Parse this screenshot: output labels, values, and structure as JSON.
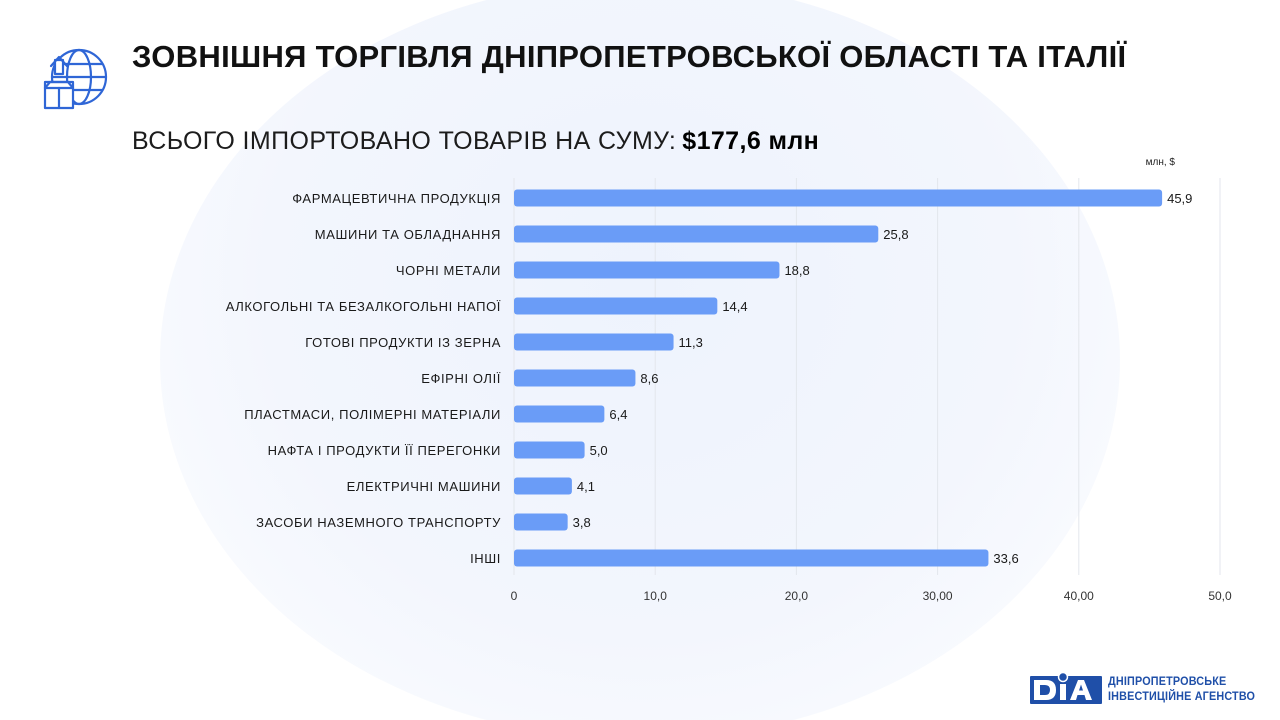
{
  "header": {
    "title": "ЗОВНІШНЯ ТОРГІВЛЯ ДНІПРОПЕТРОВСЬКОЇ ОБЛАСТІ ТА ІТАЛІЇ",
    "subtitle_label": "ВСЬОГО ІМПОРТОВАНО ТОВАРІВ НА СУМУ:",
    "subtitle_total": "$177,6 млн",
    "icon": "globe-box-export-icon"
  },
  "chart_data": {
    "type": "bar",
    "orientation": "horizontal",
    "unit_label": "млн, $",
    "categories": [
      "ФАРМАЦЕВТИЧНА ПРОДУКЦІЯ",
      "МАШИНИ ТА ОБЛАДНАННЯ",
      "ЧОРНІ МЕТАЛИ",
      "АЛКОГОЛЬНІ ТА БЕЗАЛКОГОЛЬНІ НАПОЇ",
      "ГОТОВІ ПРОДУКТИ ІЗ ЗЕРНА",
      "ЕФІРНІ ОЛІЇ",
      "ПЛАСТМАСИ, ПОЛІМЕРНІ МАТЕРІАЛИ",
      "НАФТА І ПРОДУКТИ ЇЇ ПЕРЕГОНКИ",
      "ЕЛЕКТРИЧНІ МАШИНИ",
      "ЗАСОБИ НАЗЕМНОГО ТРАНСПОРТУ",
      "ІНШІ"
    ],
    "values": [
      45.9,
      25.8,
      18.8,
      14.4,
      11.3,
      8.6,
      6.4,
      5.0,
      4.1,
      3.8,
      33.6
    ],
    "value_labels": [
      "45,9",
      "25,8",
      "18,8",
      "14,4",
      "11,3",
      "8,6",
      "6,4",
      "5,0",
      "4,1",
      "3,8",
      "33,6"
    ],
    "xlim": [
      0,
      50
    ],
    "x_ticks": [
      0,
      10,
      20,
      30,
      40,
      50
    ],
    "x_tick_labels": [
      "0",
      "10,0",
      "20,0",
      "30,00",
      "40,00",
      "50,0"
    ],
    "grid": true,
    "bar_color": "#6a9cf7",
    "grid_color": "#e3e6ec"
  },
  "logo": {
    "mark": "DIA",
    "line1": "ДНІПРОПЕТРОВСЬКЕ",
    "line2": "ІНВЕСТИЦІЙНЕ АГЕНСТВО",
    "color": "#1f4fa8"
  }
}
